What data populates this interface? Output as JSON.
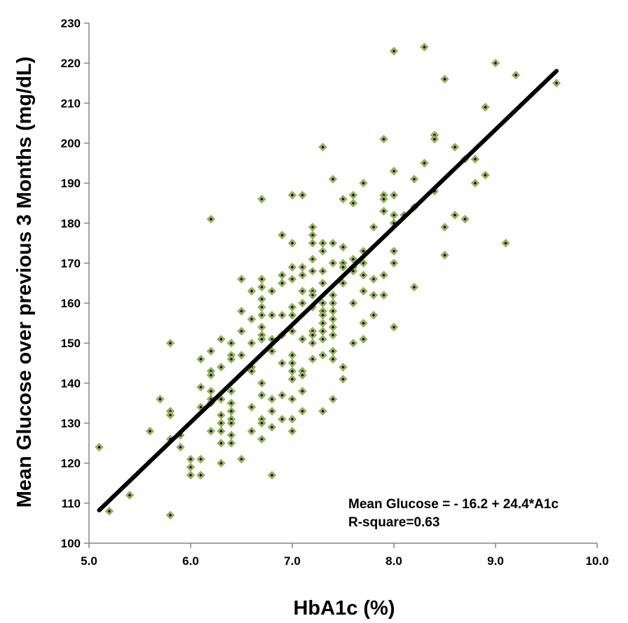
{
  "chart_data": {
    "type": "scatter",
    "title": "",
    "xlabel": "HbA1c (%)",
    "ylabel": "Mean Glucose over previous 3 Months (mg/dL)",
    "xlim": [
      5.0,
      10.0
    ],
    "ylim": [
      100,
      230
    ],
    "x_ticks": [
      "5.0",
      "6.0",
      "7.0",
      "8.0",
      "9.0",
      "10.0"
    ],
    "y_ticks": [
      "100",
      "110",
      "120",
      "130",
      "140",
      "150",
      "160",
      "170",
      "180",
      "190",
      "200",
      "210",
      "220",
      "230"
    ],
    "grid": false,
    "legend": "none",
    "marker_color": "#9BBB59",
    "marker_center_color": "#000000",
    "trendline_color": "#000000",
    "trendline": {
      "intercept": -16.2,
      "slope": 24.4,
      "x_range": [
        5.1,
        9.6
      ]
    },
    "annotation": [
      "Mean Glucose = - 16.2 + 24.4*A1c",
      "R-square=0.63"
    ],
    "points": [
      [
        5.1,
        124
      ],
      [
        5.2,
        108
      ],
      [
        5.4,
        112
      ],
      [
        5.6,
        128
      ],
      [
        5.7,
        136
      ],
      [
        5.8,
        150
      ],
      [
        5.8,
        133
      ],
      [
        5.8,
        132
      ],
      [
        5.8,
        126
      ],
      [
        5.8,
        107
      ],
      [
        5.9,
        127
      ],
      [
        5.9,
        124
      ],
      [
        6.0,
        121
      ],
      [
        6.0,
        119
      ],
      [
        6.0,
        117
      ],
      [
        6.1,
        146
      ],
      [
        6.1,
        139
      ],
      [
        6.1,
        134
      ],
      [
        6.1,
        121
      ],
      [
        6.1,
        117
      ],
      [
        6.2,
        181
      ],
      [
        6.2,
        148
      ],
      [
        6.2,
        143
      ],
      [
        6.2,
        142
      ],
      [
        6.2,
        138
      ],
      [
        6.2,
        136
      ],
      [
        6.2,
        135
      ],
      [
        6.2,
        128
      ],
      [
        6.3,
        151
      ],
      [
        6.3,
        144
      ],
      [
        6.3,
        136
      ],
      [
        6.3,
        132
      ],
      [
        6.3,
        130
      ],
      [
        6.3,
        128
      ],
      [
        6.3,
        125
      ],
      [
        6.3,
        120
      ],
      [
        6.4,
        150
      ],
      [
        6.4,
        147
      ],
      [
        6.4,
        146
      ],
      [
        6.4,
        138
      ],
      [
        6.4,
        135
      ],
      [
        6.4,
        133
      ],
      [
        6.4,
        131
      ],
      [
        6.4,
        130
      ],
      [
        6.4,
        127
      ],
      [
        6.4,
        125
      ],
      [
        6.5,
        166
      ],
      [
        6.5,
        158
      ],
      [
        6.5,
        153
      ],
      [
        6.5,
        147
      ],
      [
        6.5,
        121
      ],
      [
        6.6,
        163
      ],
      [
        6.6,
        156
      ],
      [
        6.6,
        150
      ],
      [
        6.6,
        144
      ],
      [
        6.6,
        143
      ],
      [
        6.6,
        134
      ],
      [
        6.6,
        128
      ],
      [
        6.7,
        186
      ],
      [
        6.7,
        166
      ],
      [
        6.7,
        164
      ],
      [
        6.7,
        161
      ],
      [
        6.7,
        159
      ],
      [
        6.7,
        157
      ],
      [
        6.7,
        154
      ],
      [
        6.7,
        152
      ],
      [
        6.7,
        151
      ],
      [
        6.7,
        140
      ],
      [
        6.7,
        137
      ],
      [
        6.7,
        131
      ],
      [
        6.7,
        130
      ],
      [
        6.7,
        126
      ],
      [
        6.8,
        163
      ],
      [
        6.8,
        157
      ],
      [
        6.8,
        151
      ],
      [
        6.8,
        148
      ],
      [
        6.8,
        136
      ],
      [
        6.8,
        133
      ],
      [
        6.8,
        129
      ],
      [
        6.8,
        117
      ],
      [
        6.9,
        177
      ],
      [
        6.9,
        167
      ],
      [
        6.9,
        165
      ],
      [
        6.9,
        157
      ],
      [
        6.9,
        152
      ],
      [
        6.9,
        145
      ],
      [
        6.9,
        137
      ],
      [
        6.9,
        131
      ],
      [
        7.0,
        187
      ],
      [
        7.0,
        175
      ],
      [
        7.0,
        169
      ],
      [
        7.0,
        166
      ],
      [
        7.0,
        159
      ],
      [
        7.0,
        157
      ],
      [
        7.0,
        153
      ],
      [
        7.0,
        147
      ],
      [
        7.0,
        145
      ],
      [
        7.0,
        143
      ],
      [
        7.0,
        141
      ],
      [
        7.0,
        136
      ],
      [
        7.0,
        131
      ],
      [
        7.0,
        128
      ],
      [
        7.1,
        187
      ],
      [
        7.1,
        169
      ],
      [
        7.1,
        167
      ],
      [
        7.1,
        163
      ],
      [
        7.1,
        160
      ],
      [
        7.1,
        151
      ],
      [
        7.1,
        143
      ],
      [
        7.1,
        142
      ],
      [
        7.1,
        138
      ],
      [
        7.1,
        133
      ],
      [
        7.2,
        179
      ],
      [
        7.2,
        177
      ],
      [
        7.2,
        175
      ],
      [
        7.2,
        171
      ],
      [
        7.2,
        168
      ],
      [
        7.2,
        163
      ],
      [
        7.2,
        162
      ],
      [
        7.2,
        159
      ],
      [
        7.2,
        153
      ],
      [
        7.2,
        152
      ],
      [
        7.2,
        150
      ],
      [
        7.2,
        146
      ],
      [
        7.3,
        199
      ],
      [
        7.3,
        175
      ],
      [
        7.3,
        173
      ],
      [
        7.3,
        168
      ],
      [
        7.3,
        165
      ],
      [
        7.3,
        160
      ],
      [
        7.3,
        158
      ],
      [
        7.3,
        157
      ],
      [
        7.3,
        155
      ],
      [
        7.3,
        153
      ],
      [
        7.3,
        151
      ],
      [
        7.3,
        147
      ],
      [
        7.3,
        133
      ],
      [
        7.4,
        191
      ],
      [
        7.4,
        175
      ],
      [
        7.4,
        170
      ],
      [
        7.4,
        162
      ],
      [
        7.4,
        160
      ],
      [
        7.4,
        158
      ],
      [
        7.4,
        156
      ],
      [
        7.4,
        154
      ],
      [
        7.4,
        152
      ],
      [
        7.4,
        148
      ],
      [
        7.4,
        146
      ],
      [
        7.4,
        136
      ],
      [
        7.5,
        186
      ],
      [
        7.5,
        174
      ],
      [
        7.5,
        170
      ],
      [
        7.5,
        169
      ],
      [
        7.5,
        165
      ],
      [
        7.5,
        144
      ],
      [
        7.5,
        141
      ],
      [
        7.6,
        187
      ],
      [
        7.6,
        185
      ],
      [
        7.6,
        171
      ],
      [
        7.6,
        169
      ],
      [
        7.6,
        168
      ],
      [
        7.6,
        160
      ],
      [
        7.6,
        150
      ],
      [
        7.7,
        190
      ],
      [
        7.7,
        173
      ],
      [
        7.7,
        170
      ],
      [
        7.7,
        167
      ],
      [
        7.7,
        163
      ],
      [
        7.7,
        155
      ],
      [
        7.7,
        151
      ],
      [
        7.8,
        179
      ],
      [
        7.8,
        166
      ],
      [
        7.8,
        162
      ],
      [
        7.8,
        157
      ],
      [
        7.9,
        201
      ],
      [
        7.9,
        187
      ],
      [
        7.9,
        186
      ],
      [
        7.9,
        183
      ],
      [
        7.9,
        167
      ],
      [
        7.9,
        162
      ],
      [
        8.0,
        223
      ],
      [
        8.0,
        193
      ],
      [
        8.0,
        187
      ],
      [
        8.0,
        182
      ],
      [
        8.0,
        180
      ],
      [
        8.0,
        173
      ],
      [
        8.0,
        170
      ],
      [
        8.0,
        154
      ],
      [
        8.1,
        182
      ],
      [
        8.2,
        191
      ],
      [
        8.2,
        184
      ],
      [
        8.2,
        164
      ],
      [
        8.3,
        224
      ],
      [
        8.3,
        195
      ],
      [
        8.4,
        202
      ],
      [
        8.4,
        201
      ],
      [
        8.4,
        188
      ],
      [
        8.5,
        216
      ],
      [
        8.5,
        179
      ],
      [
        8.5,
        172
      ],
      [
        8.6,
        199
      ],
      [
        8.6,
        182
      ],
      [
        8.7,
        196
      ],
      [
        8.7,
        181
      ],
      [
        8.8,
        196
      ],
      [
        8.8,
        190
      ],
      [
        8.9,
        209
      ],
      [
        8.9,
        192
      ],
      [
        9.0,
        220
      ],
      [
        9.1,
        175
      ],
      [
        9.2,
        217
      ],
      [
        9.6,
        215
      ]
    ]
  }
}
